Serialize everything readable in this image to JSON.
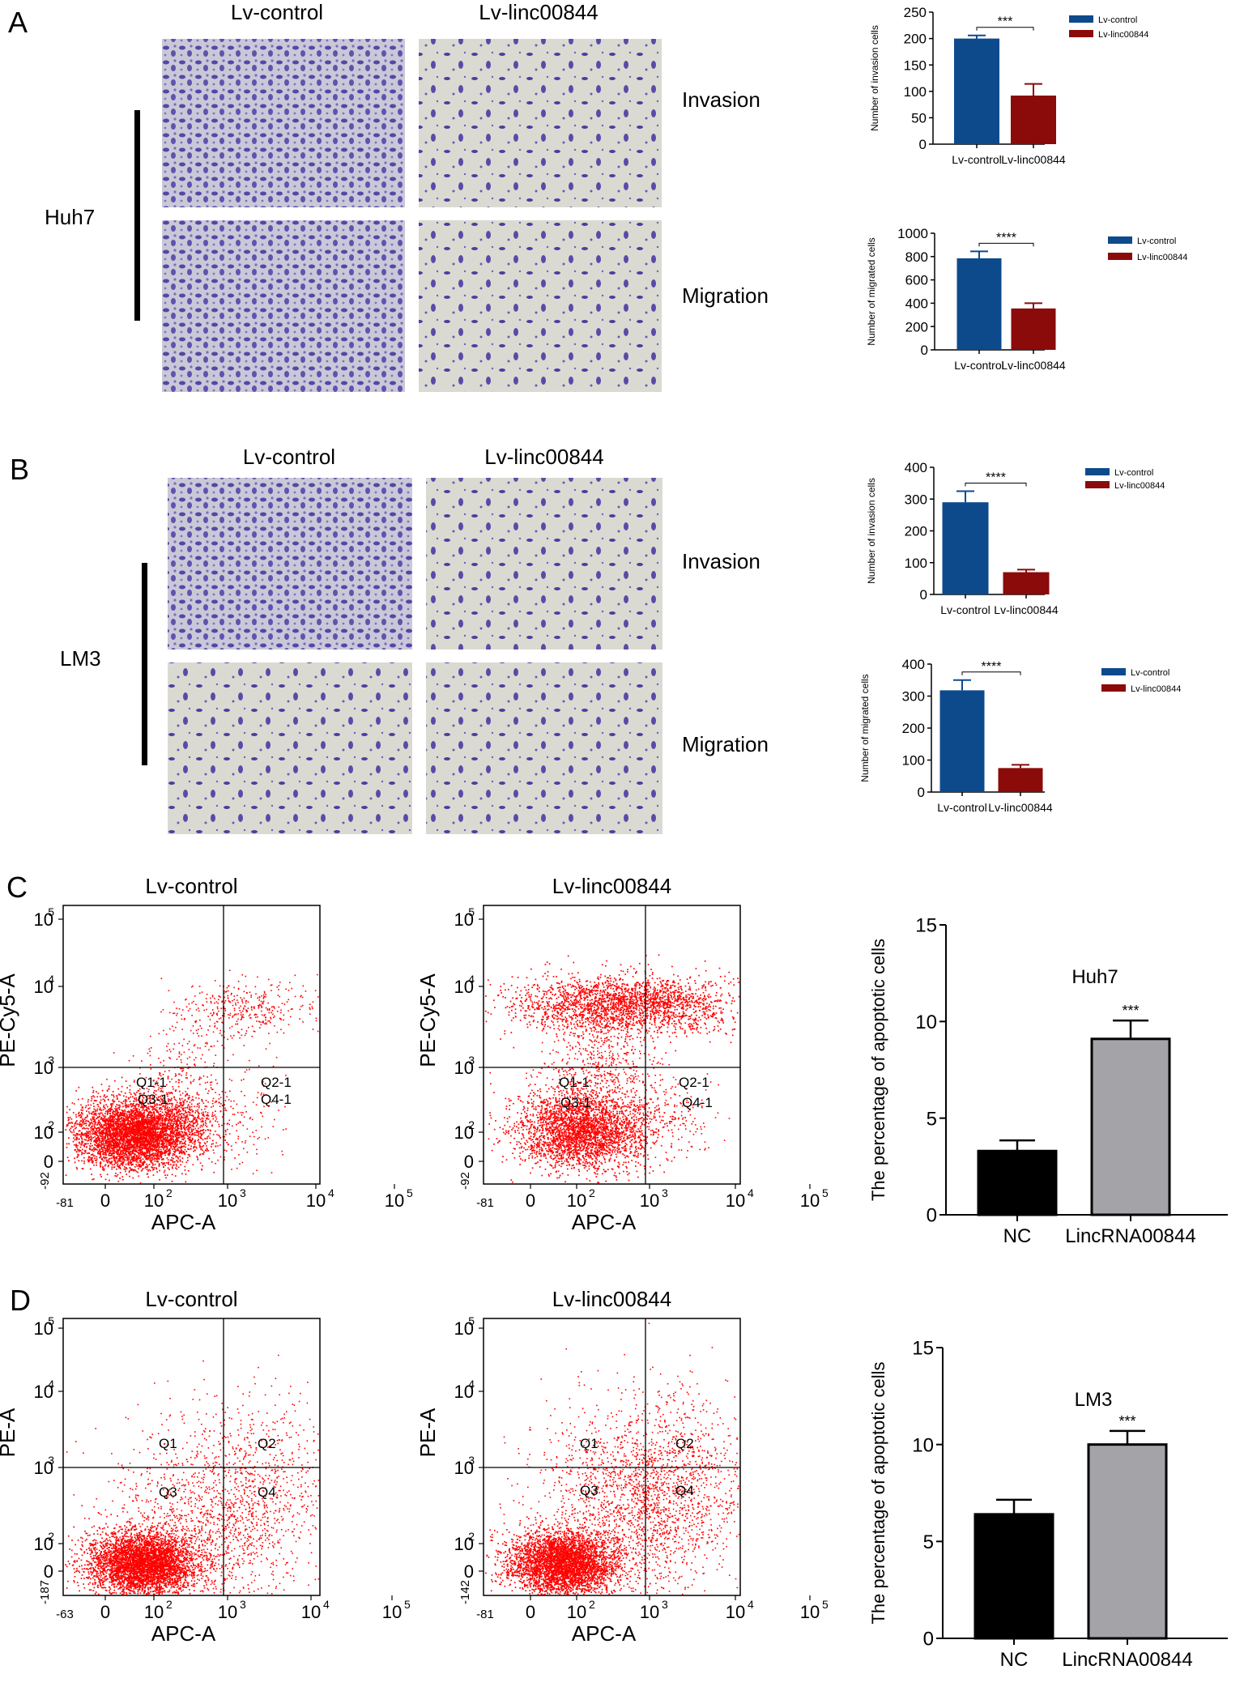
{
  "panels": {
    "A": {
      "letter": "A",
      "cell_line": "Huh7",
      "col_labels": [
        "Lv-control",
        "Lv-linc00844"
      ],
      "row_labels": [
        "Invasion",
        "Migration"
      ]
    },
    "B": {
      "letter": "B",
      "cell_line": "LM3",
      "col_labels": [
        "Lv-control",
        "Lv-linc00844"
      ],
      "row_labels": [
        "Invasion",
        "Migration"
      ]
    },
    "C": {
      "letter": "C",
      "titles": [
        "Lv-control",
        "Lv-linc00844"
      ],
      "ylabel": "PE-Cy5-A",
      "xlabel": "APC-A",
      "quadrants": [
        "Q1-1",
        "Q2-1",
        "Q3-1",
        "Q4-1"
      ],
      "x_min": "-81",
      "y_min": "-92",
      "x_ticks": [
        "0",
        "10",
        "10",
        "10",
        "10"
      ],
      "x_exps": [
        "",
        "2",
        "3",
        "4",
        "5"
      ],
      "y_ticks": [
        "0",
        "10",
        "10",
        "10",
        "10"
      ],
      "y_exps": [
        "",
        "2",
        "3",
        "4",
        "5"
      ]
    },
    "D": {
      "letter": "D",
      "titles": [
        "Lv-control",
        "Lv-linc00844"
      ],
      "ylabel": "PE-A",
      "xlabel": "APC-A",
      "quadrants": [
        "Q1",
        "Q2",
        "Q3",
        "Q4"
      ],
      "x_min": [
        "-63",
        "-81"
      ],
      "y_min": [
        "-187",
        "-142"
      ],
      "x_ticks": [
        "0",
        "10",
        "10",
        "10",
        "10"
      ],
      "x_exps": [
        "",
        "2",
        "3",
        "4",
        "5"
      ],
      "y_ticks": [
        "0",
        "10",
        "10",
        "10",
        "10"
      ],
      "y_exps": [
        "",
        "2",
        "3",
        "4",
        "5"
      ]
    }
  },
  "colors": {
    "lv_control": "#0d4a8c",
    "lv_linc": "#8b0a0a",
    "nc": "#000000",
    "lincrna": "#a3a3a8",
    "scatter": "#ff0000",
    "stain_bg": "#d8d8d0",
    "stain_cell": "#4a3a9a"
  },
  "chart_data": [
    {
      "type": "bar",
      "id": "A-invasion",
      "categories": [
        "Lv-control",
        "Lv-linc00844"
      ],
      "values": [
        200,
        92
      ],
      "errors": [
        6,
        22
      ],
      "ylabel": "Number of invasion cells",
      "ylim": [
        0,
        250
      ],
      "yticks": [
        0,
        50,
        100,
        150,
        200,
        250
      ],
      "legend": [
        "Lv-control",
        "Lv-linc00844"
      ],
      "significance": "***"
    },
    {
      "type": "bar",
      "id": "A-migration",
      "categories": [
        "Lv-control",
        "Lv-linc00844"
      ],
      "values": [
        785,
        355
      ],
      "errors": [
        60,
        45
      ],
      "ylabel": "Number of migrated cells",
      "ylim": [
        0,
        1000
      ],
      "yticks": [
        0,
        200,
        400,
        600,
        800,
        1000
      ],
      "legend": [
        "Lv-control",
        "Lv-linc00844"
      ],
      "significance": "****"
    },
    {
      "type": "bar",
      "id": "B-invasion",
      "categories": [
        "Lv-control",
        "Lv-linc00844"
      ],
      "values": [
        290,
        70
      ],
      "errors": [
        35,
        8
      ],
      "ylabel": "Number of invasion cells",
      "ylim": [
        0,
        400
      ],
      "yticks": [
        0,
        100,
        200,
        300,
        400
      ],
      "legend": [
        "Lv-control",
        "Lv-linc00844"
      ],
      "significance": "****"
    },
    {
      "type": "bar",
      "id": "B-migration",
      "categories": [
        "Lv-control",
        "Lv-linc00844"
      ],
      "values": [
        318,
        75
      ],
      "errors": [
        32,
        10
      ],
      "ylabel": "Number of migrated cells",
      "ylim": [
        0,
        400
      ],
      "yticks": [
        0,
        100,
        200,
        300,
        400
      ],
      "legend": [
        "Lv-control",
        "Lv-linc00844"
      ],
      "significance": "****"
    },
    {
      "type": "bar",
      "id": "C-apoptosis",
      "categories": [
        "NC",
        "LincRNA00844"
      ],
      "values": [
        3.3,
        9.1
      ],
      "errors": [
        0.55,
        0.95
      ],
      "ylabel": "The percentage of apoptotic cells",
      "ylim": [
        0,
        15
      ],
      "yticks": [
        0,
        5,
        10,
        15
      ],
      "annotation": "Huh7",
      "significance": "***"
    },
    {
      "type": "bar",
      "id": "D-apoptosis",
      "categories": [
        "NC",
        "LincRNA00844"
      ],
      "values": [
        6.4,
        10.0
      ],
      "errors": [
        0.75,
        0.7
      ],
      "ylabel": "The percentage of apoptotic cells",
      "ylim": [
        0,
        15
      ],
      "yticks": [
        0,
        5,
        10,
        15
      ],
      "annotation": "LM3",
      "significance": "***"
    }
  ]
}
